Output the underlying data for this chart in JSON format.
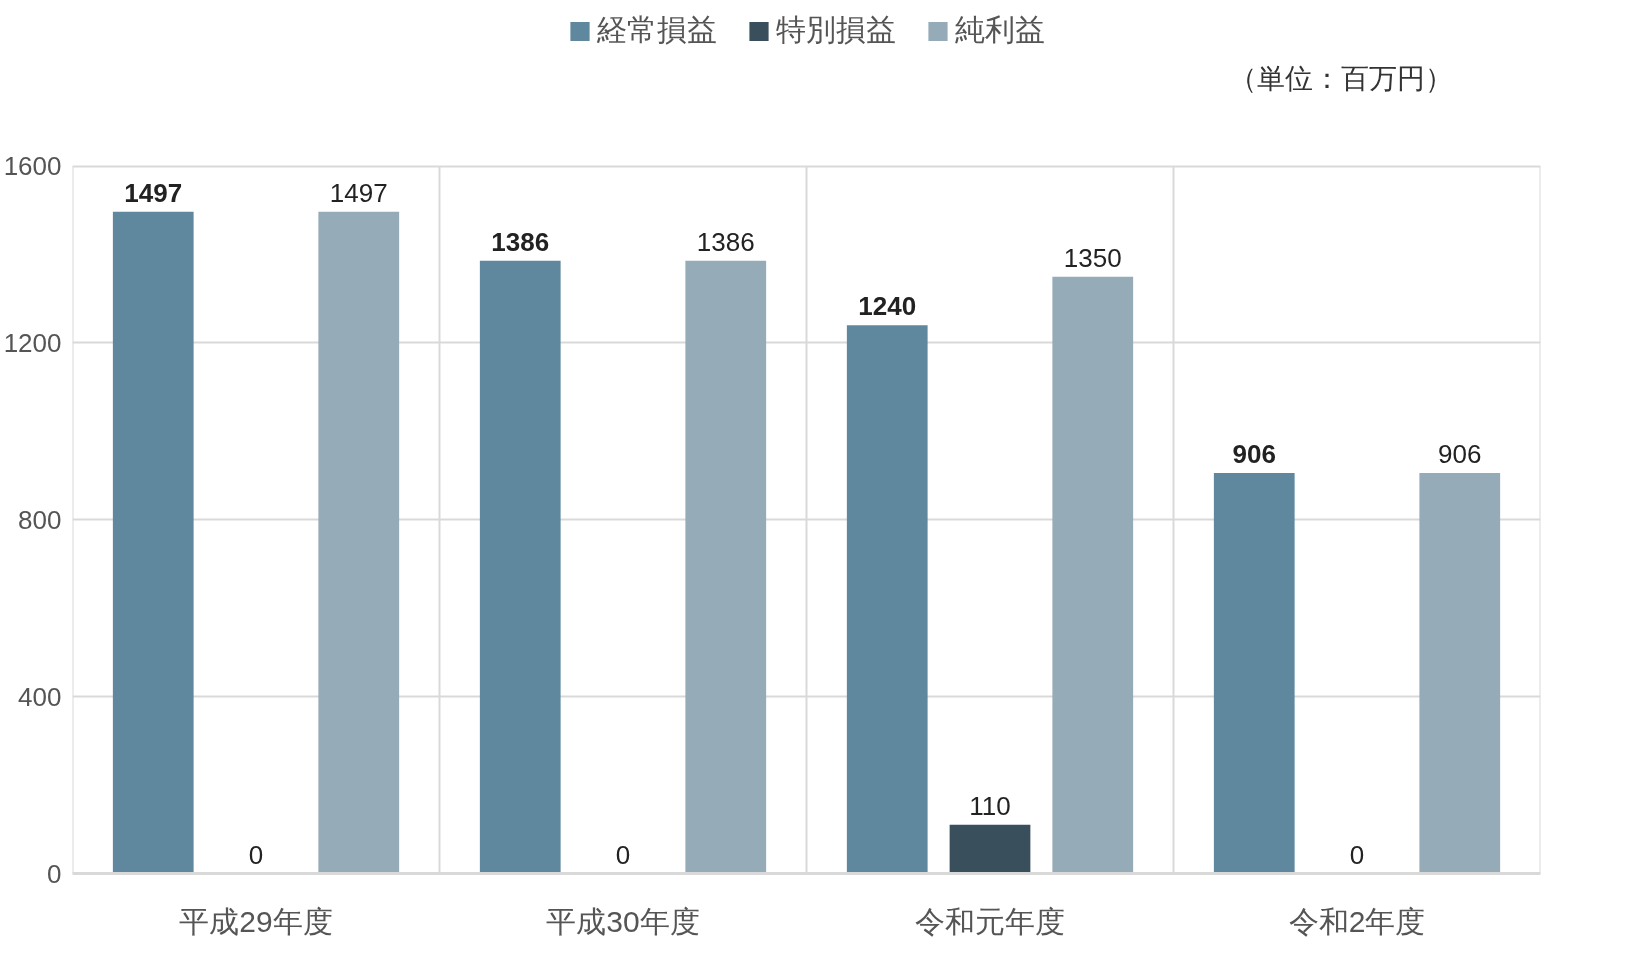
{
  "chart_data": {
    "type": "bar",
    "categories": [
      "平成29年度",
      "平成30年度",
      "令和元年度",
      "令和2年度"
    ],
    "series": [
      {
        "name": "経常損益",
        "color": "#5f879e",
        "values": [
          1497,
          1386,
          1240,
          906
        ]
      },
      {
        "name": "特別損益",
        "color": "#3a4f5c",
        "values": [
          0,
          0,
          110,
          0
        ]
      },
      {
        "name": "純利益",
        "color": "#96abb8",
        "values": [
          1497,
          1386,
          1350,
          906
        ]
      }
    ],
    "ylim": [
      0,
      1600
    ],
    "yticks": [
      0,
      400,
      800,
      1200,
      1600
    ],
    "grid": true,
    "legend": "top",
    "data_labels": true,
    "annotations": [
      "（単位：百万円）"
    ]
  }
}
